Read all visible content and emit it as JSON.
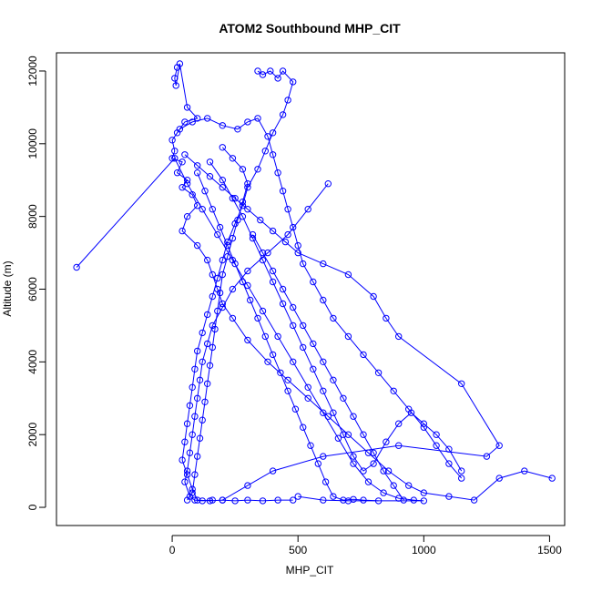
{
  "chart_data": {
    "type": "line",
    "title": "ATOM2 Southbound MHP_CIT",
    "xlabel": "MHP_CIT",
    "ylabel": "Altitude (m)",
    "xlim": [
      -460,
      1560
    ],
    "ylim": [
      -500,
      12500
    ],
    "xticks": [
      0,
      500,
      1000,
      1500
    ],
    "yticks": [
      0,
      2000,
      4000,
      6000,
      8000,
      10000,
      12000
    ],
    "marker": "open-circle",
    "grid": false,
    "color": "#0000ff",
    "series": [
      {
        "values": [
          [
            20,
            12100
          ],
          [
            10,
            11800
          ],
          [
            15,
            11600
          ],
          [
            30,
            12200
          ],
          [
            60,
            11000
          ],
          [
            100,
            10700
          ],
          [
            50,
            10600
          ],
          [
            20,
            10300
          ],
          [
            0,
            10100
          ],
          [
            10,
            9800
          ],
          [
            0,
            9600
          ],
          [
            40,
            9500
          ],
          [
            20,
            9200
          ],
          [
            60,
            9000
          ],
          [
            40,
            8800
          ],
          [
            80,
            8600
          ],
          [
            100,
            8300
          ],
          [
            60,
            8000
          ],
          [
            40,
            7600
          ],
          [
            100,
            7200
          ],
          [
            140,
            6800
          ],
          [
            160,
            6400
          ],
          [
            180,
            6000
          ],
          [
            200,
            5600
          ],
          [
            240,
            5200
          ],
          [
            300,
            4600
          ],
          [
            380,
            4000
          ],
          [
            460,
            3500
          ],
          [
            540,
            3000
          ],
          [
            620,
            2500
          ],
          [
            700,
            2000
          ],
          [
            780,
            1500
          ],
          [
            860,
            1000
          ],
          [
            940,
            600
          ],
          [
            1000,
            400
          ],
          [
            1100,
            300
          ],
          [
            1200,
            200
          ],
          [
            1300,
            800
          ],
          [
            1400,
            1000
          ],
          [
            1510,
            800
          ]
        ]
      },
      {
        "values": [
          [
            340,
            12000
          ],
          [
            360,
            11900
          ],
          [
            390,
            12000
          ],
          [
            420,
            11800
          ],
          [
            440,
            12000
          ],
          [
            480,
            11700
          ],
          [
            460,
            11200
          ],
          [
            440,
            10800
          ],
          [
            400,
            10300
          ],
          [
            370,
            9800
          ],
          [
            340,
            9300
          ],
          [
            300,
            8800
          ],
          [
            280,
            8300
          ],
          [
            250,
            7800
          ],
          [
            220,
            7300
          ],
          [
            200,
            6800
          ],
          [
            180,
            6300
          ],
          [
            160,
            5800
          ],
          [
            140,
            5300
          ],
          [
            120,
            4800
          ],
          [
            100,
            4300
          ],
          [
            90,
            3800
          ],
          [
            80,
            3300
          ],
          [
            70,
            2800
          ],
          [
            60,
            2300
          ],
          [
            50,
            1800
          ],
          [
            40,
            1300
          ],
          [
            60,
            900
          ],
          [
            80,
            500
          ],
          [
            100,
            200
          ],
          [
            150,
            180
          ],
          [
            200,
            200
          ],
          [
            250,
            180
          ],
          [
            300,
            200
          ],
          [
            360,
            180
          ],
          [
            420,
            200
          ],
          [
            480,
            200
          ]
        ]
      },
      {
        "values": [
          [
            -380,
            6600
          ],
          [
            10,
            9600
          ],
          [
            60,
            8900
          ],
          [
            120,
            8200
          ],
          [
            180,
            7500
          ],
          [
            240,
            6800
          ],
          [
            300,
            6100
          ],
          [
            360,
            5400
          ],
          [
            420,
            4700
          ],
          [
            480,
            4000
          ],
          [
            540,
            3300
          ],
          [
            600,
            2600
          ],
          [
            660,
            1900
          ],
          [
            720,
            1200
          ],
          [
            780,
            700
          ],
          [
            840,
            400
          ],
          [
            900,
            250
          ],
          [
            960,
            200
          ],
          [
            1000,
            180
          ],
          [
            700,
            180
          ],
          [
            600,
            200
          ],
          [
            500,
            300
          ]
        ]
      },
      {
        "values": [
          [
            620,
            8900
          ],
          [
            540,
            8200
          ],
          [
            460,
            7500
          ],
          [
            380,
            7000
          ],
          [
            300,
            6500
          ],
          [
            240,
            6000
          ],
          [
            200,
            5500
          ],
          [
            160,
            5000
          ],
          [
            140,
            4500
          ],
          [
            120,
            4000
          ],
          [
            110,
            3500
          ],
          [
            100,
            3000
          ],
          [
            90,
            2500
          ],
          [
            80,
            2000
          ],
          [
            70,
            1500
          ],
          [
            60,
            1000
          ],
          [
            50,
            700
          ],
          [
            70,
            300
          ],
          [
            90,
            200
          ],
          [
            120,
            180
          ],
          [
            160,
            200
          ]
        ]
      },
      {
        "values": [
          [
            30,
            10400
          ],
          [
            80,
            10600
          ],
          [
            140,
            10700
          ],
          [
            200,
            10500
          ],
          [
            260,
            10400
          ],
          [
            300,
            10600
          ],
          [
            340,
            10700
          ],
          [
            380,
            10200
          ],
          [
            400,
            9700
          ],
          [
            420,
            9200
          ],
          [
            440,
            8700
          ],
          [
            460,
            8200
          ],
          [
            480,
            7700
          ],
          [
            500,
            7200
          ],
          [
            520,
            6700
          ],
          [
            560,
            6200
          ],
          [
            600,
            5700
          ],
          [
            640,
            5200
          ],
          [
            700,
            4700
          ],
          [
            760,
            4200
          ],
          [
            820,
            3700
          ],
          [
            880,
            3200
          ],
          [
            940,
            2700
          ],
          [
            1000,
            2200
          ],
          [
            1050,
            1700
          ],
          [
            1100,
            1200
          ],
          [
            1150,
            800
          ]
        ]
      },
      {
        "values": [
          [
            320,
            7500
          ],
          [
            360,
            7000
          ],
          [
            400,
            6500
          ],
          [
            440,
            6000
          ],
          [
            480,
            5500
          ],
          [
            520,
            5000
          ],
          [
            560,
            4500
          ],
          [
            600,
            4000
          ],
          [
            640,
            3500
          ],
          [
            680,
            3000
          ],
          [
            720,
            2500
          ],
          [
            760,
            2000
          ],
          [
            800,
            1500
          ],
          [
            840,
            1000
          ],
          [
            880,
            600
          ],
          [
            920,
            200
          ]
        ]
      },
      {
        "values": [
          [
            50,
            9700
          ],
          [
            100,
            9400
          ],
          [
            150,
            9100
          ],
          [
            200,
            8800
          ],
          [
            250,
            8500
          ],
          [
            300,
            8200
          ],
          [
            350,
            7900
          ],
          [
            400,
            7600
          ],
          [
            450,
            7300
          ],
          [
            500,
            7000
          ],
          [
            600,
            6700
          ],
          [
            700,
            6400
          ],
          [
            800,
            5800
          ],
          [
            850,
            5200
          ],
          [
            900,
            4700
          ],
          [
            1150,
            3400
          ],
          [
            1300,
            1700
          ],
          [
            1250,
            1400
          ],
          [
            900,
            1700
          ],
          [
            600,
            1400
          ],
          [
            400,
            1000
          ],
          [
            300,
            600
          ],
          [
            200,
            200
          ]
        ]
      },
      {
        "values": [
          [
            150,
            9500
          ],
          [
            200,
            9000
          ],
          [
            240,
            8500
          ],
          [
            280,
            8000
          ],
          [
            320,
            7400
          ],
          [
            360,
            6800
          ],
          [
            400,
            6200
          ],
          [
            440,
            5600
          ],
          [
            480,
            5000
          ],
          [
            520,
            4400
          ],
          [
            560,
            3800
          ],
          [
            600,
            3200
          ],
          [
            640,
            2600
          ],
          [
            680,
            2000
          ],
          [
            720,
            1400
          ],
          [
            760,
            1000
          ],
          [
            800,
            1200
          ],
          [
            850,
            1800
          ],
          [
            900,
            2300
          ],
          [
            950,
            2600
          ],
          [
            1000,
            2300
          ],
          [
            1050,
            2000
          ],
          [
            1100,
            1600
          ],
          [
            1150,
            1000
          ]
        ]
      },
      {
        "values": [
          [
            100,
            9200
          ],
          [
            130,
            8700
          ],
          [
            160,
            8200
          ],
          [
            190,
            7700
          ],
          [
            220,
            7200
          ],
          [
            250,
            6700
          ],
          [
            280,
            6200
          ],
          [
            310,
            5700
          ],
          [
            340,
            5200
          ],
          [
            370,
            4700
          ],
          [
            400,
            4200
          ],
          [
            430,
            3700
          ],
          [
            460,
            3200
          ],
          [
            490,
            2700
          ],
          [
            520,
            2200
          ],
          [
            550,
            1700
          ],
          [
            580,
            1200
          ],
          [
            610,
            700
          ],
          [
            640,
            300
          ],
          [
            680,
            200
          ],
          [
            720,
            220
          ],
          [
            760,
            200
          ],
          [
            820,
            180
          ]
        ]
      },
      {
        "values": [
          [
            200,
            9900
          ],
          [
            240,
            9600
          ],
          [
            280,
            9300
          ],
          [
            300,
            8900
          ],
          [
            280,
            8400
          ],
          [
            260,
            7900
          ],
          [
            240,
            7400
          ],
          [
            220,
            6900
          ],
          [
            200,
            6400
          ],
          [
            190,
            5900
          ],
          [
            180,
            5400
          ],
          [
            170,
            4900
          ],
          [
            160,
            4400
          ],
          [
            150,
            3900
          ],
          [
            140,
            3400
          ],
          [
            130,
            2900
          ],
          [
            120,
            2400
          ],
          [
            110,
            1900
          ],
          [
            100,
            1400
          ],
          [
            90,
            900
          ],
          [
            80,
            400
          ],
          [
            60,
            200
          ]
        ]
      }
    ]
  }
}
